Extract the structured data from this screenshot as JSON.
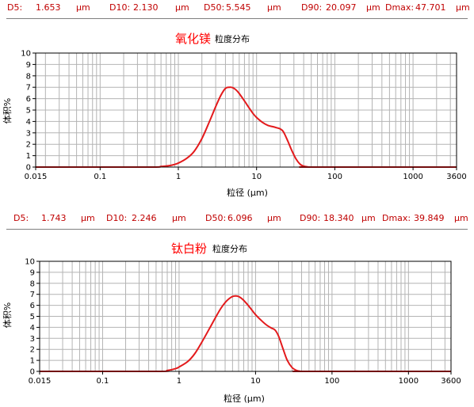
{
  "colors": {
    "stats_text": "#c00000",
    "title": "#ff0000",
    "curve": "#e31a1c",
    "grid": "#b4b4b4",
    "frame": "#000000"
  },
  "charts": [
    {
      "stats": {
        "d5_label": "D5:",
        "d5_value": "1.653",
        "d10_label": "D10:",
        "d10_value": "2.130",
        "d50_label": "D50:",
        "d50_value": "5.545",
        "d90_label": "D90:",
        "d90_value": "20.097",
        "dmax_label": "Dmax:",
        "dmax_value": "47.701",
        "unit": "μm"
      },
      "title": "氧化镁",
      "subtitle": "粒度分布",
      "xlabel": "粒径 (μm)",
      "ylabel": "体积%",
      "x_tick_labels": [
        "0.015",
        "0.1",
        "1",
        "10",
        "100",
        "1000",
        "3600"
      ],
      "y_tick_labels": [
        "0",
        "1",
        "2",
        "3",
        "4",
        "5",
        "6",
        "7",
        "8",
        "9",
        "10"
      ]
    },
    {
      "stats": {
        "d5_label": "D5:",
        "d5_value": "1.743",
        "d10_label": "D10:",
        "d10_value": "2.246",
        "d50_label": "D50:",
        "d50_value": "6.096",
        "d90_label": "D90:",
        "d90_value": "18.340",
        "dmax_label": "Dmax:",
        "dmax_value": "39.849",
        "unit": "μm"
      },
      "title": "钛白粉",
      "subtitle": "粒度分布",
      "xlabel": "粒径 (μm)",
      "ylabel": "体积%",
      "x_tick_labels": [
        "0.015",
        "0.1",
        "1",
        "10",
        "100",
        "1000",
        "3600"
      ],
      "y_tick_labels": [
        "0",
        "1",
        "2",
        "3",
        "4",
        "5",
        "6",
        "7",
        "8",
        "9",
        "10"
      ]
    }
  ],
  "chart_data": [
    {
      "type": "line",
      "title": "氧化镁",
      "subtitle": "粒度分布",
      "xlabel": "粒径 (μm)",
      "ylabel": "体积%",
      "x_scale": "log",
      "xlim": [
        0.015,
        3600
      ],
      "ylim": [
        0,
        10
      ],
      "grid": true,
      "x_ticks": [
        0.015,
        0.1,
        1,
        10,
        100,
        1000,
        3600
      ],
      "y_ticks": [
        0,
        1,
        2,
        3,
        4,
        5,
        6,
        7,
        8,
        9,
        10
      ],
      "series": [
        {
          "name": "",
          "x": [
            0.015,
            0.4,
            0.6,
            0.8,
            1.0,
            1.3,
            1.6,
            2.0,
            2.5,
            3.0,
            3.5,
            4.0,
            4.5,
            5.0,
            5.5,
            6.0,
            7.0,
            8.0,
            9.0,
            10,
            12,
            14,
            16,
            18,
            20,
            22,
            25,
            28,
            32,
            36,
            40,
            45,
            50,
            3600
          ],
          "y": [
            0,
            0,
            0.05,
            0.15,
            0.35,
            0.8,
            1.4,
            2.5,
            4.0,
            5.3,
            6.3,
            6.9,
            7.0,
            6.95,
            6.75,
            6.45,
            5.8,
            5.2,
            4.7,
            4.35,
            3.9,
            3.65,
            3.55,
            3.45,
            3.35,
            3.1,
            2.3,
            1.5,
            0.7,
            0.25,
            0.08,
            0.02,
            0,
            0
          ]
        }
      ]
    },
    {
      "type": "line",
      "title": "钛白粉",
      "subtitle": "粒度分布",
      "xlabel": "粒径 (μm)",
      "ylabel": "体积%",
      "x_scale": "log",
      "xlim": [
        0.015,
        3600
      ],
      "ylim": [
        0,
        10
      ],
      "grid": true,
      "x_ticks": [
        0.015,
        0.1,
        1,
        10,
        100,
        1000,
        3600
      ],
      "y_ticks": [
        0,
        1,
        2,
        3,
        4,
        5,
        6,
        7,
        8,
        9,
        10
      ],
      "series": [
        {
          "name": "",
          "x": [
            0.015,
            0.5,
            0.7,
            0.9,
            1.0,
            1.3,
            1.6,
            2.0,
            2.5,
            3.0,
            3.5,
            4.0,
            4.5,
            5.0,
            5.5,
            6.0,
            6.5,
            7.0,
            8.0,
            9.0,
            10,
            12,
            14,
            16,
            18,
            20,
            23,
            26,
            30,
            34,
            38,
            45,
            3600
          ],
          "y": [
            0,
            0,
            0.08,
            0.25,
            0.4,
            0.9,
            1.6,
            2.7,
            3.9,
            4.9,
            5.7,
            6.25,
            6.6,
            6.8,
            6.85,
            6.8,
            6.65,
            6.45,
            6.0,
            5.55,
            5.15,
            4.6,
            4.2,
            3.95,
            3.75,
            3.2,
            2.0,
            1.0,
            0.35,
            0.1,
            0.02,
            0,
            0
          ]
        }
      ]
    }
  ]
}
